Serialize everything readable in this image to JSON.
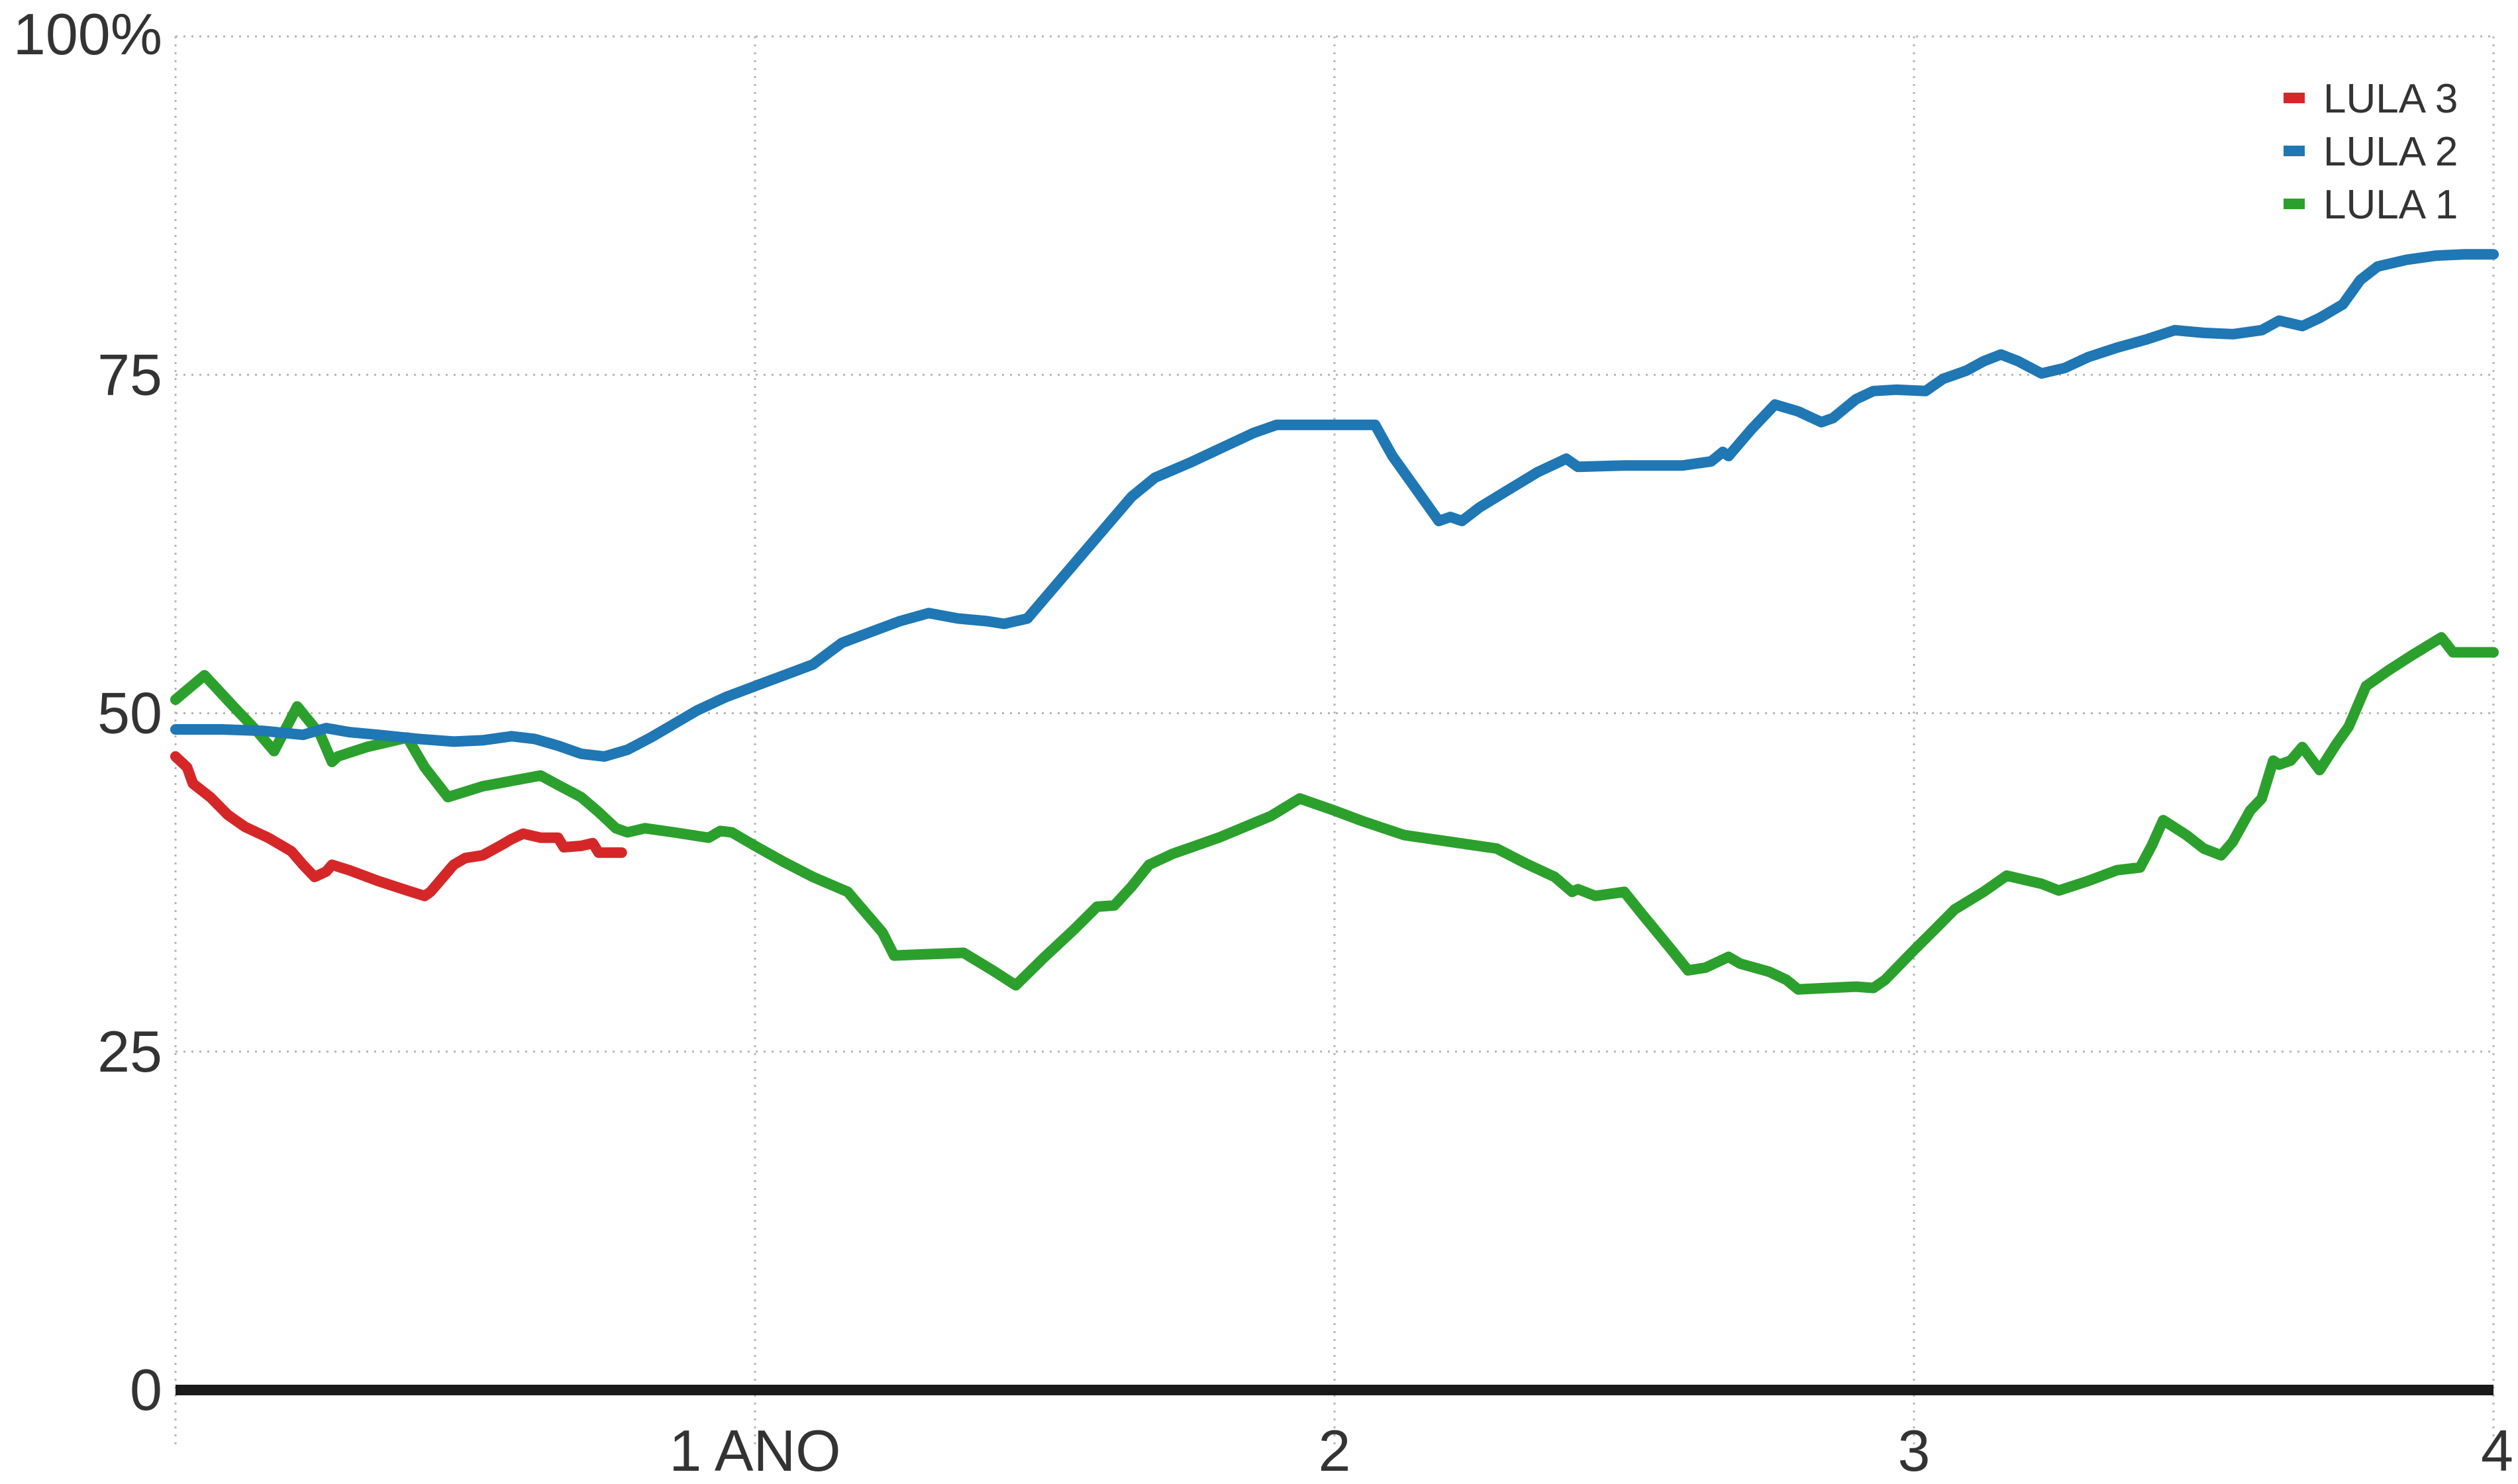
{
  "chart_data": {
    "type": "line",
    "x_unit": "anos",
    "xlim": [
      0,
      4
    ],
    "ylim": [
      0,
      100
    ],
    "x_ticks": [
      {
        "value": 1,
        "label": "1 ANO"
      },
      {
        "value": 2,
        "label": "2"
      },
      {
        "value": 3,
        "label": "3"
      },
      {
        "value": 4,
        "label": "4"
      }
    ],
    "y_ticks": [
      {
        "value": 0,
        "label": "0"
      },
      {
        "value": 25,
        "label": "25"
      },
      {
        "value": 50,
        "label": "50"
      },
      {
        "value": 75,
        "label": "75"
      },
      {
        "value": 100,
        "label": "100%"
      }
    ],
    "grid": true,
    "legend_position": "top-right",
    "series": [
      {
        "name": "LULA 3",
        "color": "#d62728",
        "points": [
          [
            0.0,
            46.8
          ],
          [
            0.02,
            46.0
          ],
          [
            0.03,
            44.8
          ],
          [
            0.06,
            43.8
          ],
          [
            0.09,
            42.5
          ],
          [
            0.12,
            41.6
          ],
          [
            0.16,
            40.8
          ],
          [
            0.2,
            39.8
          ],
          [
            0.22,
            38.8
          ],
          [
            0.24,
            37.9
          ],
          [
            0.26,
            38.3
          ],
          [
            0.27,
            38.8
          ],
          [
            0.3,
            38.4
          ],
          [
            0.35,
            37.6
          ],
          [
            0.4,
            36.9
          ],
          [
            0.43,
            36.5
          ],
          [
            0.44,
            36.8
          ],
          [
            0.46,
            37.8
          ],
          [
            0.48,
            38.8
          ],
          [
            0.5,
            39.3
          ],
          [
            0.53,
            39.5
          ],
          [
            0.56,
            40.2
          ],
          [
            0.58,
            40.7
          ],
          [
            0.6,
            41.1
          ],
          [
            0.63,
            40.8
          ],
          [
            0.66,
            40.8
          ],
          [
            0.67,
            40.1
          ],
          [
            0.7,
            40.2
          ],
          [
            0.72,
            40.4
          ],
          [
            0.73,
            39.7
          ],
          [
            0.77,
            39.7
          ]
        ]
      },
      {
        "name": "LULA 2",
        "color": "#1f77b4",
        "points": [
          [
            0.0,
            48.8
          ],
          [
            0.08,
            48.8
          ],
          [
            0.15,
            48.7
          ],
          [
            0.22,
            48.4
          ],
          [
            0.26,
            48.9
          ],
          [
            0.3,
            48.6
          ],
          [
            0.35,
            48.4
          ],
          [
            0.42,
            48.1
          ],
          [
            0.48,
            47.9
          ],
          [
            0.53,
            48.0
          ],
          [
            0.58,
            48.3
          ],
          [
            0.62,
            48.1
          ],
          [
            0.66,
            47.6
          ],
          [
            0.7,
            47.0
          ],
          [
            0.74,
            46.8
          ],
          [
            0.78,
            47.3
          ],
          [
            0.82,
            48.2
          ],
          [
            0.86,
            49.2
          ],
          [
            0.9,
            50.2
          ],
          [
            0.95,
            51.2
          ],
          [
            1.0,
            52.0
          ],
          [
            1.05,
            52.8
          ],
          [
            1.1,
            53.6
          ],
          [
            1.15,
            55.2
          ],
          [
            1.2,
            56.0
          ],
          [
            1.25,
            56.8
          ],
          [
            1.3,
            57.4
          ],
          [
            1.35,
            57.0
          ],
          [
            1.4,
            56.8
          ],
          [
            1.43,
            56.6
          ],
          [
            1.47,
            57.0
          ],
          [
            1.5,
            58.5
          ],
          [
            1.55,
            61.0
          ],
          [
            1.6,
            63.5
          ],
          [
            1.65,
            66.0
          ],
          [
            1.69,
            67.4
          ],
          [
            1.75,
            68.5
          ],
          [
            1.8,
            69.5
          ],
          [
            1.86,
            70.7
          ],
          [
            1.9,
            71.3
          ],
          [
            1.95,
            71.3
          ],
          [
            2.0,
            71.3
          ],
          [
            2.07,
            71.3
          ],
          [
            2.1,
            69.0
          ],
          [
            2.15,
            66.0
          ],
          [
            2.18,
            64.2
          ],
          [
            2.2,
            64.5
          ],
          [
            2.22,
            64.2
          ],
          [
            2.25,
            65.2
          ],
          [
            2.3,
            66.5
          ],
          [
            2.35,
            67.8
          ],
          [
            2.4,
            68.8
          ],
          [
            2.42,
            68.2
          ],
          [
            2.5,
            68.3
          ],
          [
            2.6,
            68.3
          ],
          [
            2.65,
            68.6
          ],
          [
            2.67,
            69.3
          ],
          [
            2.68,
            69.0
          ],
          [
            2.72,
            71.0
          ],
          [
            2.76,
            72.8
          ],
          [
            2.8,
            72.3
          ],
          [
            2.84,
            71.5
          ],
          [
            2.86,
            71.8
          ],
          [
            2.9,
            73.2
          ],
          [
            2.93,
            73.8
          ],
          [
            2.97,
            73.9
          ],
          [
            3.02,
            73.8
          ],
          [
            3.05,
            74.7
          ],
          [
            3.09,
            75.3
          ],
          [
            3.12,
            76.0
          ],
          [
            3.15,
            76.5
          ],
          [
            3.18,
            76.0
          ],
          [
            3.22,
            75.1
          ],
          [
            3.26,
            75.5
          ],
          [
            3.3,
            76.3
          ],
          [
            3.35,
            77.0
          ],
          [
            3.4,
            77.6
          ],
          [
            3.45,
            78.3
          ],
          [
            3.5,
            78.1
          ],
          [
            3.55,
            78.0
          ],
          [
            3.6,
            78.3
          ],
          [
            3.63,
            79.0
          ],
          [
            3.67,
            78.6
          ],
          [
            3.7,
            79.2
          ],
          [
            3.74,
            80.2
          ],
          [
            3.77,
            82.0
          ],
          [
            3.8,
            83.0
          ],
          [
            3.85,
            83.5
          ],
          [
            3.9,
            83.8
          ],
          [
            3.95,
            83.9
          ],
          [
            4.0,
            83.9
          ]
        ]
      },
      {
        "name": "LULA 1",
        "color": "#2ca02c",
        "points": [
          [
            0.0,
            51.0
          ],
          [
            0.05,
            52.8
          ],
          [
            0.1,
            50.5
          ],
          [
            0.14,
            48.7
          ],
          [
            0.17,
            47.2
          ],
          [
            0.21,
            50.5
          ],
          [
            0.25,
            48.4
          ],
          [
            0.27,
            46.4
          ],
          [
            0.28,
            46.8
          ],
          [
            0.33,
            47.5
          ],
          [
            0.4,
            48.2
          ],
          [
            0.43,
            46.0
          ],
          [
            0.47,
            43.8
          ],
          [
            0.53,
            44.6
          ],
          [
            0.58,
            45.0
          ],
          [
            0.63,
            45.4
          ],
          [
            0.66,
            44.7
          ],
          [
            0.7,
            43.8
          ],
          [
            0.73,
            42.7
          ],
          [
            0.76,
            41.5
          ],
          [
            0.78,
            41.2
          ],
          [
            0.81,
            41.5
          ],
          [
            0.86,
            41.2
          ],
          [
            0.92,
            40.8
          ],
          [
            0.94,
            41.3
          ],
          [
            0.96,
            41.2
          ],
          [
            1.0,
            40.2
          ],
          [
            1.05,
            39.0
          ],
          [
            1.1,
            37.9
          ],
          [
            1.16,
            36.8
          ],
          [
            1.22,
            33.8
          ],
          [
            1.24,
            32.1
          ],
          [
            1.3,
            32.2
          ],
          [
            1.36,
            32.3
          ],
          [
            1.41,
            31.0
          ],
          [
            1.45,
            29.9
          ],
          [
            1.5,
            32.0
          ],
          [
            1.55,
            34.0
          ],
          [
            1.59,
            35.7
          ],
          [
            1.62,
            35.8
          ],
          [
            1.65,
            37.2
          ],
          [
            1.68,
            38.8
          ],
          [
            1.72,
            39.6
          ],
          [
            1.8,
            40.8
          ],
          [
            1.89,
            42.4
          ],
          [
            1.94,
            43.7
          ],
          [
            2.0,
            42.8
          ],
          [
            2.05,
            42.0
          ],
          [
            2.12,
            41.0
          ],
          [
            2.2,
            40.5
          ],
          [
            2.28,
            40.0
          ],
          [
            2.33,
            38.9
          ],
          [
            2.38,
            37.9
          ],
          [
            2.41,
            36.8
          ],
          [
            2.42,
            37.0
          ],
          [
            2.45,
            36.5
          ],
          [
            2.5,
            36.8
          ],
          [
            2.53,
            35.2
          ],
          [
            2.58,
            32.6
          ],
          [
            2.61,
            31.0
          ],
          [
            2.64,
            31.2
          ],
          [
            2.68,
            32.0
          ],
          [
            2.7,
            31.5
          ],
          [
            2.75,
            30.9
          ],
          [
            2.78,
            30.3
          ],
          [
            2.8,
            29.6
          ],
          [
            2.85,
            29.7
          ],
          [
            2.9,
            29.8
          ],
          [
            2.93,
            29.7
          ],
          [
            2.95,
            30.3
          ],
          [
            3.0,
            32.5
          ],
          [
            3.04,
            34.2
          ],
          [
            3.07,
            35.5
          ],
          [
            3.12,
            36.8
          ],
          [
            3.16,
            38.0
          ],
          [
            3.22,
            37.4
          ],
          [
            3.25,
            36.9
          ],
          [
            3.3,
            37.6
          ],
          [
            3.35,
            38.4
          ],
          [
            3.39,
            38.6
          ],
          [
            3.41,
            40.2
          ],
          [
            3.43,
            42.1
          ],
          [
            3.47,
            41.0
          ],
          [
            3.5,
            40.0
          ],
          [
            3.53,
            39.5
          ],
          [
            3.55,
            40.5
          ],
          [
            3.58,
            42.8
          ],
          [
            3.6,
            43.7
          ],
          [
            3.62,
            46.5
          ],
          [
            3.63,
            46.2
          ],
          [
            3.65,
            46.5
          ],
          [
            3.67,
            47.5
          ],
          [
            3.7,
            45.8
          ],
          [
            3.73,
            47.8
          ],
          [
            3.75,
            49.0
          ],
          [
            3.78,
            52.0
          ],
          [
            3.82,
            53.2
          ],
          [
            3.86,
            54.3
          ],
          [
            3.91,
            55.6
          ],
          [
            3.93,
            54.5
          ],
          [
            4.0,
            54.5
          ]
        ]
      }
    ]
  }
}
